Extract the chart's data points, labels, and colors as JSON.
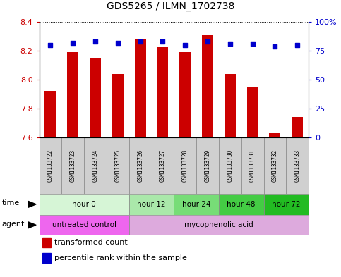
{
  "title": "GDS5265 / ILMN_1702738",
  "samples": [
    "GSM1133722",
    "GSM1133723",
    "GSM1133724",
    "GSM1133725",
    "GSM1133726",
    "GSM1133727",
    "GSM1133728",
    "GSM1133729",
    "GSM1133730",
    "GSM1133731",
    "GSM1133732",
    "GSM1133733"
  ],
  "transformed_count": [
    7.92,
    8.19,
    8.15,
    8.04,
    8.28,
    8.23,
    8.19,
    8.31,
    8.04,
    7.95,
    7.63,
    7.74
  ],
  "percentile_rank": [
    80,
    82,
    83,
    82,
    83,
    83,
    80,
    83,
    81,
    81,
    79,
    80
  ],
  "ylim_left": [
    7.6,
    8.4
  ],
  "ylim_right": [
    0,
    100
  ],
  "yticks_left": [
    7.6,
    7.8,
    8.0,
    8.2,
    8.4
  ],
  "yticks_right": [
    0,
    25,
    50,
    75,
    100
  ],
  "bar_color": "#cc0000",
  "dot_color": "#0000cc",
  "bar_bottom": 7.6,
  "time_groups": [
    {
      "label": "hour 0",
      "start": 0,
      "end": 4,
      "color": "#d6f5d6"
    },
    {
      "label": "hour 12",
      "start": 4,
      "end": 6,
      "color": "#aae8aa"
    },
    {
      "label": "hour 24",
      "start": 6,
      "end": 8,
      "color": "#77dd77"
    },
    {
      "label": "hour 48",
      "start": 8,
      "end": 10,
      "color": "#44cc44"
    },
    {
      "label": "hour 72",
      "start": 10,
      "end": 12,
      "color": "#22bb22"
    }
  ],
  "agent_groups": [
    {
      "label": "untreated control",
      "start": 0,
      "end": 4,
      "color": "#ee66ee"
    },
    {
      "label": "mycophenolic acid",
      "start": 4,
      "end": 12,
      "color": "#ddaadd"
    }
  ],
  "legend_items": [
    {
      "label": "transformed count",
      "color": "#cc0000"
    },
    {
      "label": "percentile rank within the sample",
      "color": "#0000cc"
    }
  ],
  "bg_color": "#ffffff",
  "left_tick_color": "#cc0000",
  "right_tick_color": "#0000cc",
  "sample_bg": "#d0d0d0"
}
